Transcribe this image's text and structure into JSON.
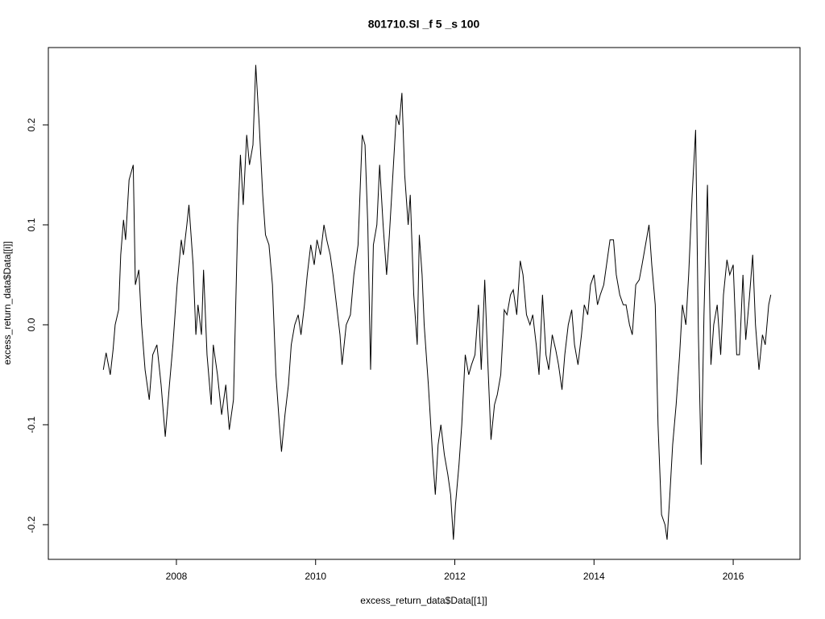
{
  "chart_data": {
    "type": "line",
    "title": "801710.SI _f 5 _s 100",
    "xlabel": "excess_return_data$Data[[1]]",
    "ylabel": "excess_return_data$Data[[i]]",
    "xlim": [
      2006.16,
      2016.96
    ],
    "ylim": [
      -0.2347,
      0.2774
    ],
    "xticks": [
      2008,
      2010,
      2012,
      2014,
      2016
    ],
    "yticks": [
      -0.2,
      -0.1,
      {
        "value": 0,
        "label": "0.0"
      },
      0.1,
      0.2
    ],
    "grid": false,
    "series": [
      {
        "name": null,
        "color": "#000000",
        "x": [
          2006.95,
          2006.99,
          2007.05,
          2007.09,
          2007.12,
          2007.17,
          2007.2,
          2007.24,
          2007.27,
          2007.32,
          2007.38,
          2007.41,
          2007.46,
          2007.5,
          2007.55,
          2007.61,
          2007.66,
          2007.72,
          2007.78,
          2007.84,
          2007.9,
          2007.95,
          2008.01,
          2008.07,
          2008.1,
          2008.15,
          2008.18,
          2008.24,
          2008.28,
          2008.31,
          2008.36,
          2008.39,
          2008.44,
          2008.5,
          2008.53,
          2008.59,
          2008.65,
          2008.71,
          2008.76,
          2008.82,
          2008.88,
          2008.92,
          2008.96,
          2009.01,
          2009.05,
          2009.1,
          2009.14,
          2009.19,
          2009.24,
          2009.28,
          2009.33,
          2009.38,
          2009.43,
          2009.48,
          2009.51,
          2009.56,
          2009.61,
          2009.65,
          2009.7,
          2009.75,
          2009.79,
          2009.84,
          2009.88,
          2009.93,
          2009.98,
          2010.02,
          2010.07,
          2010.12,
          2010.16,
          2010.21,
          2010.25,
          2010.3,
          2010.35,
          2010.38,
          2010.44,
          2010.5,
          2010.55,
          2010.61,
          2010.67,
          2010.71,
          2010.75,
          2010.79,
          2010.83,
          2010.88,
          2010.92,
          2010.97,
          2011.02,
          2011.06,
          2011.11,
          2011.16,
          2011.2,
          2011.24,
          2011.28,
          2011.33,
          2011.36,
          2011.41,
          2011.46,
          2011.49,
          2011.53,
          2011.56,
          2011.62,
          2011.68,
          2011.72,
          2011.76,
          2011.8,
          2011.85,
          2011.9,
          2011.94,
          2011.98,
          2012.01,
          2012.06,
          2012.1,
          2012.15,
          2012.2,
          2012.24,
          2012.29,
          2012.34,
          2012.38,
          2012.43,
          2012.47,
          2012.52,
          2012.57,
          2012.61,
          2012.66,
          2012.71,
          2012.75,
          2012.8,
          2012.84,
          2012.89,
          2012.94,
          2012.98,
          2013.03,
          2013.08,
          2013.12,
          2013.17,
          2013.21,
          2013.26,
          2013.31,
          2013.35,
          2013.4,
          2013.45,
          2013.49,
          2013.54,
          2013.58,
          2013.63,
          2013.68,
          2013.72,
          2013.77,
          2013.82,
          2013.86,
          2013.91,
          2013.95,
          2014.0,
          2014.05,
          2014.09,
          2014.14,
          2014.18,
          2014.23,
          2014.28,
          2014.32,
          2014.37,
          2014.42,
          2014.46,
          2014.51,
          2014.55,
          2014.6,
          2014.65,
          2014.69,
          2014.74,
          2014.79,
          2014.83,
          2014.88,
          2014.92,
          2014.97,
          2015.02,
          2015.05,
          2015.09,
          2015.13,
          2015.18,
          2015.23,
          2015.27,
          2015.32,
          2015.36,
          2015.41,
          2015.46,
          2015.5,
          2015.54,
          2015.58,
          2015.63,
          2015.68,
          2015.72,
          2015.77,
          2015.82,
          2015.86,
          2015.91,
          2015.95,
          2016.0,
          2016.05,
          2016.09,
          2016.14,
          2016.18,
          2016.23,
          2016.28,
          2016.32,
          2016.37,
          2016.42,
          2016.46,
          2016.51,
          2016.54
        ],
        "values": [
          -0.045,
          -0.028,
          -0.05,
          -0.025,
          0.0,
          0.015,
          0.07,
          0.105,
          0.085,
          0.145,
          0.16,
          0.04,
          0.055,
          0.0,
          -0.045,
          -0.075,
          -0.03,
          -0.02,
          -0.06,
          -0.112,
          -0.06,
          -0.02,
          0.04,
          0.085,
          0.07,
          0.1,
          0.12,
          0.06,
          -0.01,
          0.02,
          -0.01,
          0.055,
          -0.03,
          -0.08,
          -0.02,
          -0.05,
          -0.09,
          -0.06,
          -0.105,
          -0.075,
          0.1,
          0.17,
          0.12,
          0.19,
          0.16,
          0.18,
          0.26,
          0.2,
          0.13,
          0.09,
          0.08,
          0.04,
          -0.05,
          -0.1,
          -0.127,
          -0.09,
          -0.06,
          -0.02,
          0.0,
          0.01,
          -0.01,
          0.02,
          0.05,
          0.08,
          0.06,
          0.085,
          0.07,
          0.1,
          0.085,
          0.07,
          0.05,
          0.02,
          -0.01,
          -0.04,
          0.0,
          0.01,
          0.05,
          0.08,
          0.19,
          0.18,
          0.1,
          -0.045,
          0.08,
          0.1,
          0.16,
          0.1,
          0.05,
          0.09,
          0.15,
          0.21,
          0.2,
          0.232,
          0.15,
          0.1,
          0.13,
          0.03,
          -0.02,
          0.09,
          0.05,
          0.0,
          -0.06,
          -0.13,
          -0.17,
          -0.12,
          -0.1,
          -0.13,
          -0.15,
          -0.17,
          -0.215,
          -0.18,
          -0.14,
          -0.1,
          -0.03,
          -0.05,
          -0.04,
          -0.03,
          0.02,
          -0.045,
          0.045,
          -0.03,
          -0.115,
          -0.08,
          -0.07,
          -0.05,
          0.015,
          0.01,
          0.03,
          0.035,
          0.01,
          0.064,
          0.05,
          0.01,
          0.0,
          0.01,
          -0.02,
          -0.05,
          0.03,
          -0.03,
          -0.045,
          -0.01,
          -0.025,
          -0.04,
          -0.065,
          -0.03,
          0.0,
          0.015,
          -0.02,
          -0.04,
          -0.01,
          0.02,
          0.01,
          0.04,
          0.05,
          0.02,
          0.03,
          0.04,
          0.06,
          0.085,
          0.085,
          0.05,
          0.03,
          0.02,
          0.02,
          0.0,
          -0.01,
          0.04,
          0.045,
          0.06,
          0.08,
          0.1,
          0.06,
          0.02,
          -0.1,
          -0.19,
          -0.2,
          -0.215,
          -0.17,
          -0.12,
          -0.08,
          -0.03,
          0.02,
          0.0,
          0.05,
          0.13,
          0.195,
          -0.01,
          -0.14,
          0.01,
          0.14,
          -0.04,
          0.0,
          0.02,
          -0.03,
          0.03,
          0.065,
          0.05,
          0.06,
          -0.03,
          -0.03,
          0.05,
          -0.015,
          0.025,
          0.07,
          0.0,
          -0.045,
          -0.01,
          -0.02,
          0.02,
          0.03
        ]
      }
    ]
  }
}
